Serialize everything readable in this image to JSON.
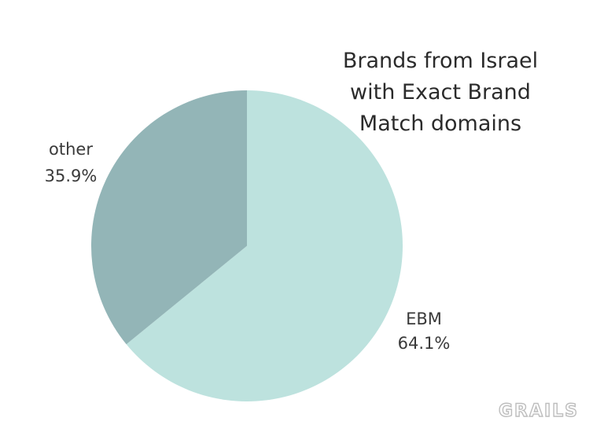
{
  "chart_data": {
    "type": "pie",
    "title": [
      "Brands from Israel",
      "with Exact Brand",
      "Match domains"
    ],
    "slices": [
      {
        "label": "EBM",
        "value": 64.1,
        "display": "64.1%",
        "color": "#bde2de"
      },
      {
        "label": "other",
        "value": 35.9,
        "display": "35.9%",
        "color": "#93b5b7"
      }
    ],
    "start": "12 o'clock",
    "direction": "clockwise",
    "legend": "none"
  },
  "branding": {
    "logo_text": "GRAILS"
  }
}
